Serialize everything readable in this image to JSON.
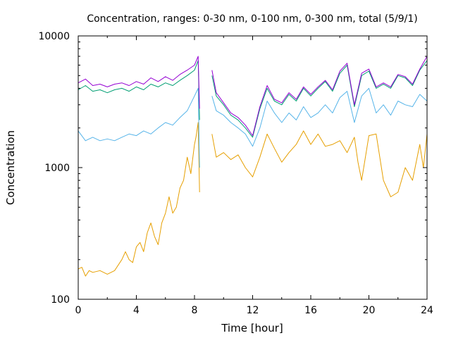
{
  "chart_data": {
    "type": "line",
    "title": "Concentration, ranges: 0-30 nm, 0-100 nm, 0-300 nm, total (5/9/1)",
    "xlabel": "Time [hour]",
    "ylabel": "Concentration",
    "xlim": [
      0,
      24
    ],
    "ylim": [
      100,
      10000
    ],
    "yscale": "log",
    "grid": false,
    "xticks": [
      0,
      4,
      8,
      12,
      16,
      20,
      24
    ],
    "xtick_labels": [
      "0",
      "4",
      "8",
      "12",
      "16",
      "20",
      "24"
    ],
    "yticks": [
      100,
      1000,
      10000
    ],
    "ytick_labels": [
      "100",
      "1000",
      "10000"
    ],
    "series": [
      {
        "color": "#e69f00",
        "x": [
          0,
          0.25,
          0.5,
          0.75,
          1,
          1.5,
          2,
          2.5,
          3,
          3.25,
          3.5,
          3.75,
          4,
          4.25,
          4.5,
          4.75,
          5,
          5.25,
          5.5,
          5.75,
          6,
          6.25,
          6.5,
          6.75,
          7,
          7.25,
          7.5,
          7.75,
          8,
          8.1,
          8.25,
          8.35,
          null,
          9.2,
          9.5,
          10,
          10.5,
          11,
          11.5,
          12,
          12.5,
          13,
          13.5,
          14,
          14.5,
          15,
          15.5,
          16,
          16.5,
          17,
          17.5,
          18,
          18.5,
          19,
          19.25,
          19.5,
          20,
          20.5,
          21,
          21.5,
          22,
          22.5,
          23,
          23.5,
          23.75,
          24
        ],
        "y": [
          170,
          175,
          150,
          165,
          160,
          165,
          155,
          165,
          200,
          230,
          200,
          190,
          250,
          270,
          230,
          320,
          380,
          300,
          260,
          380,
          450,
          600,
          450,
          500,
          700,
          800,
          1200,
          900,
          1500,
          1700,
          2200,
          650,
          null,
          1800,
          1200,
          1300,
          1150,
          1250,
          1000,
          850,
          1200,
          1800,
          1400,
          1100,
          1300,
          1500,
          1900,
          1500,
          1800,
          1450,
          1500,
          1600,
          1300,
          1700,
          1100,
          800,
          1750,
          1800,
          800,
          600,
          650,
          1000,
          800,
          1500,
          1000,
          1800
        ]
      },
      {
        "color": "#56b4e9",
        "x": [
          0,
          0.5,
          1,
          1.5,
          2,
          2.5,
          3,
          3.5,
          4,
          4.5,
          5,
          5.5,
          6,
          6.5,
          7,
          7.5,
          8,
          8.25,
          8.35,
          null,
          9.2,
          9.5,
          10,
          10.5,
          11,
          11.5,
          12,
          12.5,
          13,
          13.5,
          14,
          14.5,
          15,
          15.5,
          16,
          16.5,
          17,
          17.5,
          18,
          18.5,
          19,
          19.5,
          20,
          20.5,
          21,
          21.5,
          22,
          22.5,
          23,
          23.5,
          24
        ],
        "y": [
          1900,
          1600,
          1700,
          1600,
          1650,
          1600,
          1700,
          1800,
          1750,
          1900,
          1800,
          2000,
          2200,
          2100,
          2400,
          2700,
          3500,
          4000,
          1000,
          null,
          3500,
          2700,
          2500,
          2200,
          2000,
          1800,
          1450,
          2000,
          3200,
          2600,
          2200,
          2600,
          2300,
          2900,
          2400,
          2600,
          3000,
          2600,
          3400,
          3800,
          2200,
          3500,
          4000,
          2600,
          3000,
          2500,
          3200,
          3000,
          2900,
          3600,
          3200
        ]
      },
      {
        "color": "#009e73",
        "x": [
          0,
          0.5,
          1,
          1.5,
          2,
          2.5,
          3,
          3.5,
          4,
          4.5,
          5,
          5.5,
          6,
          6.5,
          7,
          7.5,
          8,
          8.25,
          8.35,
          null,
          9.2,
          9.5,
          10,
          10.5,
          11,
          11.5,
          12,
          12.5,
          13,
          13.5,
          14,
          14.5,
          15,
          15.5,
          16,
          16.5,
          17,
          17.5,
          18,
          18.5,
          19,
          19.5,
          20,
          20.5,
          21,
          21.5,
          22,
          22.5,
          23,
          23.5,
          24
        ],
        "y": [
          3900,
          4200,
          3800,
          3900,
          3700,
          3900,
          4000,
          3800,
          4100,
          3900,
          4300,
          4100,
          4400,
          4200,
          4600,
          5000,
          5500,
          6500,
          2300,
          null,
          5000,
          3500,
          3000,
          2500,
          2300,
          2000,
          1700,
          2800,
          4000,
          3200,
          3000,
          3600,
          3200,
          4000,
          3500,
          4000,
          4500,
          3800,
          5200,
          6000,
          2900,
          5000,
          5400,
          4000,
          4300,
          4000,
          5000,
          4800,
          4200,
          5500,
          6500
        ]
      },
      {
        "color": "#9400d3",
        "x": [
          0,
          0.5,
          1,
          1.5,
          2,
          2.5,
          3,
          3.5,
          4,
          4.5,
          5,
          5.5,
          6,
          6.5,
          7,
          7.5,
          8,
          8.25,
          8.35,
          null,
          9.2,
          9.5,
          10,
          10.5,
          11,
          11.5,
          12,
          12.5,
          13,
          13.5,
          14,
          14.5,
          15,
          15.5,
          16,
          16.5,
          17,
          17.5,
          18,
          18.5,
          19,
          19.5,
          20,
          20.5,
          21,
          21.5,
          22,
          22.5,
          23,
          23.5,
          24
        ],
        "y": [
          4400,
          4700,
          4200,
          4300,
          4100,
          4300,
          4400,
          4200,
          4500,
          4300,
          4800,
          4500,
          4900,
          4600,
          5100,
          5500,
          6000,
          7000,
          2800,
          null,
          5500,
          3700,
          3100,
          2600,
          2400,
          2100,
          1750,
          2900,
          4200,
          3300,
          3100,
          3700,
          3300,
          4100,
          3600,
          4100,
          4600,
          3900,
          5400,
          6200,
          3000,
          5200,
          5600,
          4100,
          4400,
          4100,
          5100,
          4900,
          4300,
          5600,
          7000
        ]
      }
    ]
  }
}
